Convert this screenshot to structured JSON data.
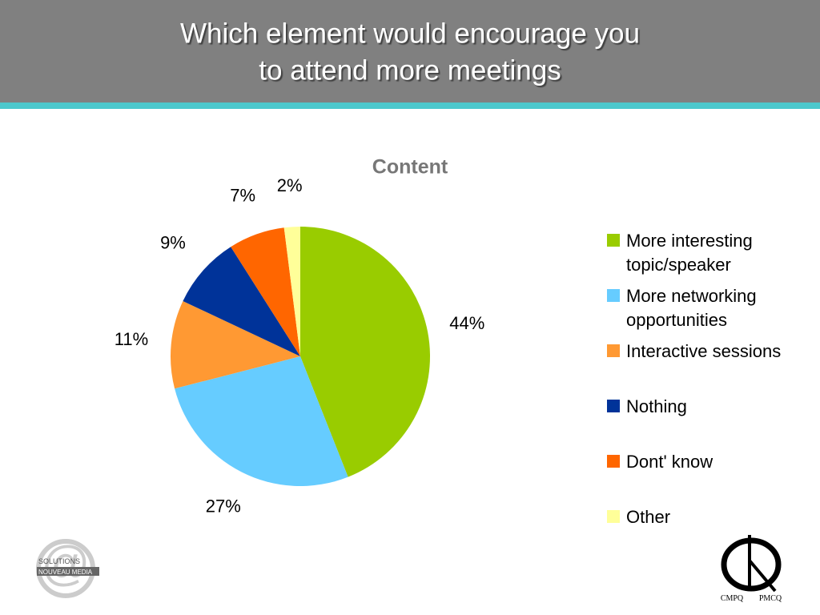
{
  "header": {
    "title": [
      "Which element would encourage you",
      "to attend more meetings"
    ]
  },
  "chart_data": {
    "type": "pie",
    "title": "Content",
    "categories": [
      "More interesting topic/speaker",
      "More networking opportunities",
      "Interactive sessions",
      "Nothing",
      "Dont' know",
      "Other"
    ],
    "values": [
      44,
      27,
      11,
      9,
      7,
      2
    ],
    "value_labels": [
      "44%",
      "27%",
      "11%",
      "9%",
      "7%",
      "2%"
    ],
    "colors": [
      "#99cc00",
      "#66ccff",
      "#ff9933",
      "#003399",
      "#ff6600",
      "#ffff99"
    ],
    "legend": "right"
  },
  "logos": {
    "left": [
      "SOLUTIONS",
      "NOUVEAU MEDIA"
    ],
    "right": [
      "CMPQ",
      "PMCQ"
    ]
  }
}
